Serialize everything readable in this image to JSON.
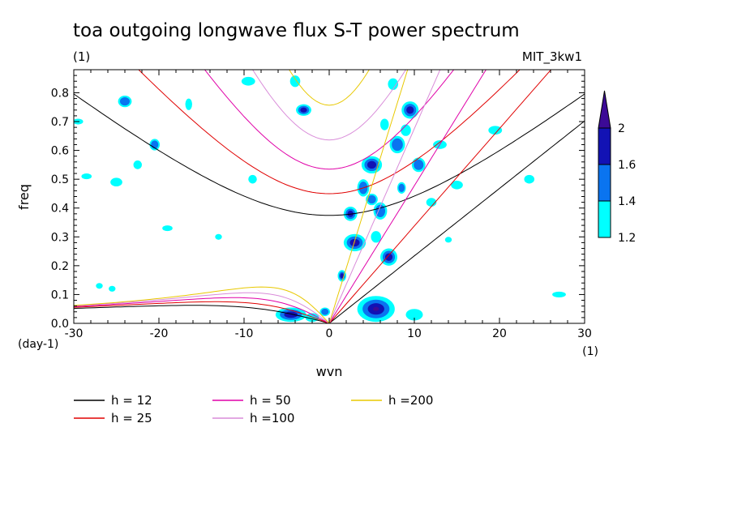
{
  "chart_data": {
    "type": "contour",
    "title": "toa outgoing longwave flux S-T power spectrum",
    "subtitle_left": "(1)",
    "subtitle_right": "MIT_3kw1",
    "xlabel": "wvn",
    "ylabel": "freq",
    "x_unit_label": "(1)",
    "y_unit_label": "(day-1)",
    "xlim": [
      -30,
      30
    ],
    "ylim": [
      0,
      0.88
    ],
    "x_ticks": [
      -30,
      -20,
      -10,
      0,
      10,
      20,
      30
    ],
    "x_tick_labels": [
      "-30",
      "-20",
      "-10",
      "0",
      "10",
      "20",
      "30"
    ],
    "y_ticks": [
      0,
      0.1,
      0.2,
      0.3,
      0.4,
      0.5,
      0.6,
      0.7,
      0.8
    ],
    "y_tick_labels": [
      "0.0",
      "0.1",
      "0.2",
      "0.3",
      "0.4",
      "0.5",
      "0.6",
      "0.7",
      "0.8"
    ],
    "colorbar": {
      "levels": [
        "1.2",
        "1.4",
        "1.6",
        "2"
      ],
      "colors": [
        "#00ffff",
        "#0a74f0",
        "#1212b4",
        "#3c0a96"
      ]
    },
    "dispersion_curves": [
      {
        "label": "h = 12",
        "h": 12,
        "color": "#000000"
      },
      {
        "label": "h = 25",
        "h": 25,
        "color": "#e00000"
      },
      {
        "label": "h = 50",
        "h": 50,
        "color": "#e000a8"
      },
      {
        "label": "h =100",
        "h": 100,
        "color": "#d98cd9"
      },
      {
        "label": "h =200",
        "h": 200,
        "color": "#e8c800"
      }
    ],
    "blobs": [
      {
        "x": 5.5,
        "y": 0.05,
        "rx": 2.2,
        "ry": 0.045,
        "level": 4
      },
      {
        "x": -4.5,
        "y": 0.03,
        "rx": 1.8,
        "ry": 0.025,
        "level": 3
      },
      {
        "x": 3.0,
        "y": 0.28,
        "rx": 1.3,
        "ry": 0.03,
        "level": 4
      },
      {
        "x": 7.0,
        "y": 0.23,
        "rx": 1.0,
        "ry": 0.03,
        "level": 3
      },
      {
        "x": -3.0,
        "y": 0.74,
        "rx": 0.9,
        "ry": 0.02,
        "level": 3
      },
      {
        "x": 9.5,
        "y": 0.74,
        "rx": 1.0,
        "ry": 0.03,
        "level": 3
      },
      {
        "x": 5.0,
        "y": 0.55,
        "rx": 1.2,
        "ry": 0.03,
        "level": 3
      },
      {
        "x": 2.5,
        "y": 0.38,
        "rx": 0.8,
        "ry": 0.025,
        "level": 3
      },
      {
        "x": 6.0,
        "y": 0.39,
        "rx": 0.8,
        "ry": 0.03,
        "level": 2
      },
      {
        "x": 1.5,
        "y": 0.165,
        "rx": 0.5,
        "ry": 0.02,
        "level": 3
      },
      {
        "x": 5.0,
        "y": 0.43,
        "rx": 0.7,
        "ry": 0.02,
        "level": 2
      },
      {
        "x": 8.0,
        "y": 0.62,
        "rx": 0.9,
        "ry": 0.03,
        "level": 2
      },
      {
        "x": 10.5,
        "y": 0.55,
        "rx": 0.8,
        "ry": 0.025,
        "level": 2
      },
      {
        "x": 7.5,
        "y": 0.83,
        "rx": 0.6,
        "ry": 0.02,
        "level": 1
      },
      {
        "x": 9.0,
        "y": 0.67,
        "rx": 0.6,
        "ry": 0.02,
        "level": 1
      },
      {
        "x": 5.5,
        "y": 0.3,
        "rx": 0.6,
        "ry": 0.02,
        "level": 1
      },
      {
        "x": 4.0,
        "y": 0.47,
        "rx": 0.7,
        "ry": 0.03,
        "level": 2
      },
      {
        "x": -0.5,
        "y": 0.04,
        "rx": 0.6,
        "ry": 0.015,
        "level": 2
      },
      {
        "x": -2.0,
        "y": 0.02,
        "rx": 0.8,
        "ry": 0.015,
        "level": 1
      },
      {
        "x": -20.5,
        "y": 0.62,
        "rx": 0.6,
        "ry": 0.02,
        "level": 2
      },
      {
        "x": -24.0,
        "y": 0.77,
        "rx": 0.8,
        "ry": 0.02,
        "level": 2
      },
      {
        "x": -29.5,
        "y": 0.7,
        "rx": 0.6,
        "ry": 0.01,
        "level": 1
      },
      {
        "x": -28.5,
        "y": 0.51,
        "rx": 0.6,
        "ry": 0.01,
        "level": 1
      },
      {
        "x": -25.0,
        "y": 0.49,
        "rx": 0.7,
        "ry": 0.015,
        "level": 1
      },
      {
        "x": -22.5,
        "y": 0.55,
        "rx": 0.5,
        "ry": 0.015,
        "level": 1
      },
      {
        "x": -19.0,
        "y": 0.33,
        "rx": 0.6,
        "ry": 0.01,
        "level": 1
      },
      {
        "x": -16.5,
        "y": 0.76,
        "rx": 0.4,
        "ry": 0.02,
        "level": 1
      },
      {
        "x": -13.0,
        "y": 0.3,
        "rx": 0.4,
        "ry": 0.01,
        "level": 1
      },
      {
        "x": -9.0,
        "y": 0.5,
        "rx": 0.5,
        "ry": 0.015,
        "level": 1
      },
      {
        "x": -9.5,
        "y": 0.84,
        "rx": 0.8,
        "ry": 0.015,
        "level": 1
      },
      {
        "x": -4.0,
        "y": 0.84,
        "rx": 0.6,
        "ry": 0.02,
        "level": 1
      },
      {
        "x": -27.0,
        "y": 0.13,
        "rx": 0.4,
        "ry": 0.01,
        "level": 1
      },
      {
        "x": -25.5,
        "y": 0.12,
        "rx": 0.4,
        "ry": 0.01,
        "level": 1
      },
      {
        "x": 13.0,
        "y": 0.62,
        "rx": 0.8,
        "ry": 0.015,
        "level": 1
      },
      {
        "x": 15.0,
        "y": 0.48,
        "rx": 0.7,
        "ry": 0.015,
        "level": 1
      },
      {
        "x": 19.5,
        "y": 0.67,
        "rx": 0.8,
        "ry": 0.015,
        "level": 1
      },
      {
        "x": 23.5,
        "y": 0.5,
        "rx": 0.6,
        "ry": 0.015,
        "level": 1
      },
      {
        "x": 27.0,
        "y": 0.1,
        "rx": 0.8,
        "ry": 0.01,
        "level": 1
      },
      {
        "x": 10.0,
        "y": 0.03,
        "rx": 1.0,
        "ry": 0.02,
        "level": 1
      },
      {
        "x": 14.0,
        "y": 0.29,
        "rx": 0.4,
        "ry": 0.01,
        "level": 1
      },
      {
        "x": 12.0,
        "y": 0.42,
        "rx": 0.6,
        "ry": 0.015,
        "level": 1
      },
      {
        "x": 8.5,
        "y": 0.47,
        "rx": 0.5,
        "ry": 0.02,
        "level": 2
      },
      {
        "x": 6.5,
        "y": 0.69,
        "rx": 0.5,
        "ry": 0.02,
        "level": 1
      }
    ]
  },
  "legend": {
    "items": [
      {
        "label": "h = 12",
        "color": "#000000"
      },
      {
        "label": "h = 25",
        "color": "#e00000"
      },
      {
        "label": "h = 50",
        "color": "#e000a8"
      },
      {
        "label": "h =100",
        "color": "#d98cd9"
      },
      {
        "label": "h =200",
        "color": "#e8c800"
      }
    ]
  }
}
